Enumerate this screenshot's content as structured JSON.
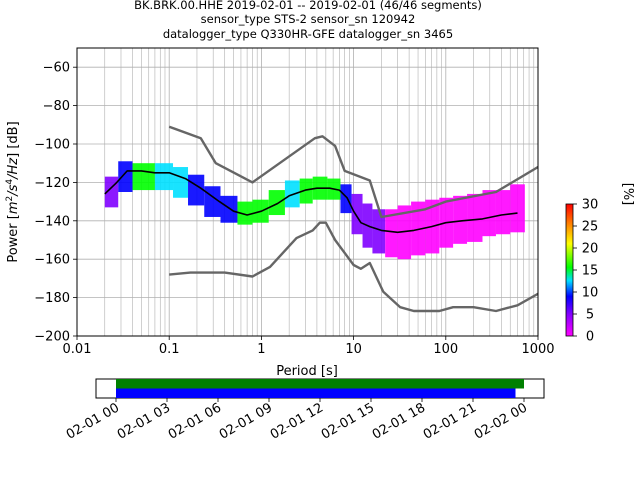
{
  "chart_data": [
    {
      "type": "heatmap",
      "title_lines": [
        "BK.BRK.00.HHE   2019-02-01 -- 2019-02-01  (46/46 segments)",
        "sensor_type STS-2 sensor_sn 120942",
        "datalogger_type Q330HR-GFE datalogger_sn 3465"
      ],
      "xlabel": "Period [s]",
      "ylabel_parts": [
        "Power [",
        "m",
        "2",
        "/s",
        "4",
        "/Hz",
        "] [dB]"
      ],
      "xscale": "log",
      "xlim": [
        0.01,
        1000
      ],
      "ylim": [
        -200,
        -50
      ],
      "xticks": [
        0.01,
        0.1,
        1,
        10,
        100,
        1000
      ],
      "xtick_labels": [
        "0.01",
        "0.1",
        "1",
        "10",
        "100",
        "1000"
      ],
      "yticks": [
        -60,
        -80,
        -100,
        -120,
        -140,
        -160,
        -180,
        -200
      ],
      "ytick_labels": [
        "−60",
        "−80",
        "−100",
        "−120",
        "−140",
        "−160",
        "−180",
        "−200"
      ],
      "grid": true,
      "colorbar": {
        "label": "[%]",
        "range": [
          0,
          30
        ],
        "ticks": [
          0,
          5,
          10,
          15,
          20,
          25,
          30
        ],
        "tick_labels": [
          "0",
          "5",
          "10",
          "15",
          "20",
          "25",
          "30"
        ]
      },
      "noise_models": [
        {
          "name": "high",
          "points": [
            [
              0.1,
              -91
            ],
            [
              0.22,
              -97
            ],
            [
              0.32,
              -110
            ],
            [
              0.8,
              -120
            ],
            [
              3.8,
              -97
            ],
            [
              4.6,
              -96
            ],
            [
              6.3,
              -101
            ],
            [
              8,
              -114
            ],
            [
              15,
              -119
            ],
            [
              20,
              -138
            ],
            [
              60,
              -134
            ],
            [
              100,
              -130
            ],
            [
              350,
              -125
            ],
            [
              1000,
              -112
            ]
          ]
        },
        {
          "name": "low",
          "points": [
            [
              0.1,
              -168
            ],
            [
              0.17,
              -167
            ],
            [
              0.4,
              -167
            ],
            [
              0.8,
              -169
            ],
            [
              1.24,
              -164
            ],
            [
              2.4,
              -149
            ],
            [
              3.6,
              -145
            ],
            [
              4.3,
              -141
            ],
            [
              5,
              -141
            ],
            [
              6.3,
              -150
            ],
            [
              10,
              -163
            ],
            [
              12,
              -165
            ],
            [
              15,
              -162
            ],
            [
              21,
              -177
            ],
            [
              32,
              -185
            ],
            [
              45,
              -187
            ],
            [
              85,
              -187
            ],
            [
              120,
              -185
            ],
            [
              200,
              -185
            ],
            [
              350,
              -187
            ],
            [
              600,
              -184
            ],
            [
              1000,
              -178
            ]
          ]
        }
      ],
      "mode_line": [
        [
          0.02,
          -126
        ],
        [
          0.027,
          -120
        ],
        [
          0.035,
          -114
        ],
        [
          0.05,
          -114
        ],
        [
          0.07,
          -115
        ],
        [
          0.1,
          -115
        ],
        [
          0.15,
          -118
        ],
        [
          0.22,
          -123
        ],
        [
          0.35,
          -130
        ],
        [
          0.5,
          -135
        ],
        [
          0.7,
          -137
        ],
        [
          1,
          -135
        ],
        [
          1.5,
          -131
        ],
        [
          2,
          -127
        ],
        [
          3,
          -124
        ],
        [
          4,
          -123
        ],
        [
          5.5,
          -123
        ],
        [
          7,
          -124
        ],
        [
          8.5,
          -128
        ],
        [
          10,
          -135
        ],
        [
          12,
          -141
        ],
        [
          15,
          -143
        ],
        [
          20,
          -145
        ],
        [
          30,
          -146
        ],
        [
          45,
          -145
        ],
        [
          70,
          -143
        ],
        [
          100,
          -141
        ],
        [
          150,
          -140
        ],
        [
          250,
          -139
        ],
        [
          400,
          -137
        ],
        [
          600,
          -136
        ]
      ],
      "psd_bands": [
        {
          "period": [
            0.02,
            0.028
          ],
          "db": [
            -133,
            -117
          ],
          "percent": 8
        },
        {
          "period": [
            0.028,
            0.04
          ],
          "db": [
            -125,
            -109
          ],
          "percent": 12
        },
        {
          "period": [
            0.04,
            0.07
          ],
          "db": [
            -124,
            -110
          ],
          "percent": 16
        },
        {
          "period": [
            0.07,
            0.11
          ],
          "db": [
            -124,
            -110
          ],
          "percent": 14
        },
        {
          "period": [
            0.11,
            0.16
          ],
          "db": [
            -128,
            -112
          ],
          "percent": 15
        },
        {
          "period": [
            0.16,
            0.24
          ],
          "db": [
            -132,
            -116
          ],
          "percent": 12
        },
        {
          "period": [
            0.24,
            0.36
          ],
          "db": [
            -138,
            -122
          ],
          "percent": 10
        },
        {
          "period": [
            0.36,
            0.55
          ],
          "db": [
            -141,
            -127
          ],
          "percent": 12
        },
        {
          "period": [
            0.55,
            0.8
          ],
          "db": [
            -142,
            -130
          ],
          "percent": 16
        },
        {
          "period": [
            0.8,
            1.2
          ],
          "db": [
            -141,
            -129
          ],
          "percent": 18
        },
        {
          "period": [
            1.2,
            1.8
          ],
          "db": [
            -137,
            -124
          ],
          "percent": 18
        },
        {
          "period": [
            1.8,
            2.6
          ],
          "db": [
            -133,
            -119
          ],
          "percent": 14
        },
        {
          "period": [
            2.6,
            3.6
          ],
          "db": [
            -131,
            -118
          ],
          "percent": 16
        },
        {
          "period": [
            3.6,
            5.2
          ],
          "db": [
            -129,
            -117
          ],
          "percent": 18
        },
        {
          "period": [
            5.2,
            7.2
          ],
          "db": [
            -129,
            -118
          ],
          "percent": 20
        },
        {
          "period": [
            7.2,
            9.5
          ],
          "db": [
            -136,
            -121
          ],
          "percent": 10
        },
        {
          "period": [
            9.5,
            12.5
          ],
          "db": [
            -147,
            -126
          ],
          "percent": 8
        },
        {
          "period": [
            12.5,
            16
          ],
          "db": [
            -154,
            -131
          ],
          "percent": 6
        },
        {
          "period": [
            16,
            22
          ],
          "db": [
            -157,
            -134
          ],
          "percent": 5
        },
        {
          "period": [
            22,
            30
          ],
          "db": [
            -159,
            -134
          ],
          "percent": 4
        },
        {
          "period": [
            30,
            42
          ],
          "db": [
            -160,
            -132
          ],
          "percent": 3
        },
        {
          "period": [
            42,
            60
          ],
          "db": [
            -158,
            -130
          ],
          "percent": 3
        },
        {
          "period": [
            60,
            85
          ],
          "db": [
            -157,
            -129
          ],
          "percent": 3
        },
        {
          "period": [
            85,
            120
          ],
          "db": [
            -154,
            -128
          ],
          "percent": 3
        },
        {
          "period": [
            120,
            170
          ],
          "db": [
            -152,
            -127
          ],
          "percent": 3
        },
        {
          "period": [
            170,
            250
          ],
          "db": [
            -151,
            -126
          ],
          "percent": 2
        },
        {
          "period": [
            250,
            350
          ],
          "db": [
            -148,
            -124
          ],
          "percent": 2
        },
        {
          "period": [
            350,
            500
          ],
          "db": [
            -147,
            -124
          ],
          "percent": 2
        },
        {
          "period": [
            500,
            720
          ],
          "db": [
            -146,
            -121
          ],
          "percent": 2
        }
      ]
    },
    {
      "type": "timeline",
      "xtick_labels": [
        "02-01 00",
        "02-01 03",
        "02-01 06",
        "02-01 09",
        "02-01 12",
        "02-01 15",
        "02-01 18",
        "02-01 21",
        "02-02 00"
      ],
      "bars": [
        {
          "color": "#008000",
          "start_hour": 0,
          "end_hour": 24.0
        },
        {
          "color": "#0000ff",
          "start_hour": 0,
          "end_hour": 23.5
        }
      ]
    }
  ]
}
